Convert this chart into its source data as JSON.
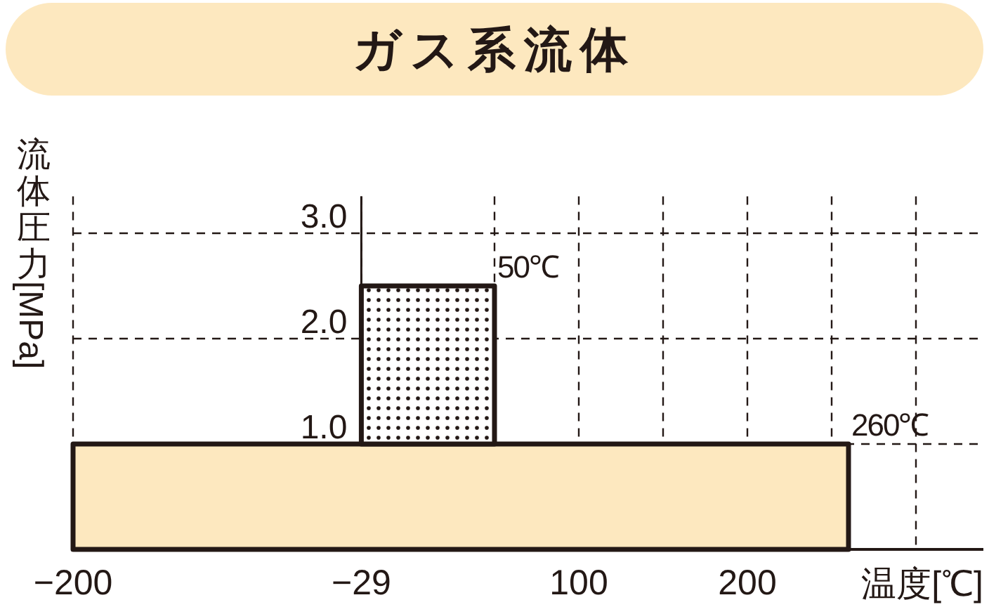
{
  "chart_data": {
    "type": "area",
    "title": "ガス系流体",
    "xlabel": "温度[℃]",
    "ylabel": "流体圧力 [MPa]",
    "xlim": [
      -200,
      340
    ],
    "ylim": [
      0,
      3.35
    ],
    "xticks": [
      -200,
      -29,
      {
        "value": 50,
        "label": null
      },
      100,
      {
        "value": 150,
        "label": null
      },
      200,
      {
        "value": 250,
        "label": null
      },
      {
        "value": 300,
        "label": null
      }
    ],
    "yticks": [
      {
        "value": 1.0,
        "label": "1.0"
      },
      {
        "value": 2.0,
        "label": "2.0"
      },
      {
        "value": 3.0,
        "label": "3.0"
      }
    ],
    "grid": true,
    "stacked": true,
    "series": [
      {
        "color": "#fde8bf",
        "x": [
          -200,
          260
        ],
        "values": [
          1.0,
          1.0
        ]
      },
      {
        "color": "#231815",
        "x": [
          -29,
          50
        ],
        "values": [
          1.5,
          1.5
        ]
      }
    ],
    "annotations": [
      {
        "text": "50℃",
        "x": 50,
        "y": 2.5
      },
      {
        "text": "260℃",
        "x": 260,
        "y": 1.0
      }
    ]
  }
}
